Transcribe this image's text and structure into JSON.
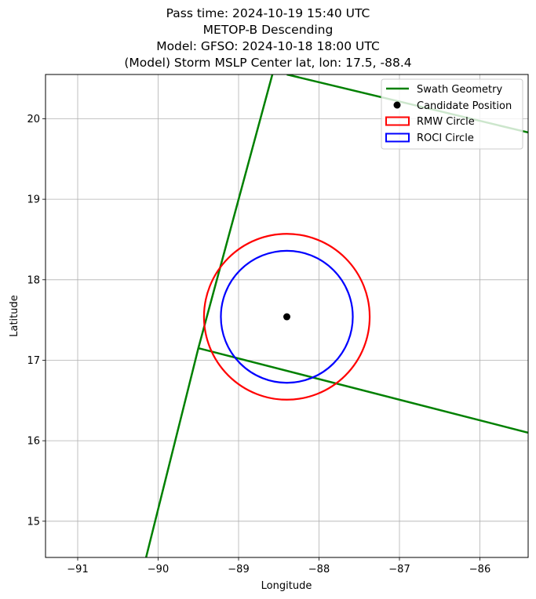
{
  "chart_data": {
    "type": "scatter",
    "title_lines": [
      "Pass time: 2024-10-19 15:40 UTC",
      "METOP-B Descending",
      "Model: GFSO: 2024-10-18 18:00 UTC",
      "(Model) Storm MSLP Center lat, lon: 17.5, -88.4"
    ],
    "xlabel": "Longitude",
    "ylabel": "Latitude",
    "xlim": [
      -91.4,
      -85.4
    ],
    "ylim": [
      14.55,
      20.55
    ],
    "xticks": [
      -91,
      -90,
      -89,
      -88,
      -87,
      -86
    ],
    "yticks": [
      15,
      16,
      17,
      18,
      19,
      20
    ],
    "xtick_labels": [
      "−91",
      "−90",
      "−89",
      "−88",
      "−87",
      "−86"
    ],
    "ytick_labels": [
      "15",
      "16",
      "17",
      "18",
      "19",
      "20"
    ],
    "grid": true,
    "legend_position": "top-right",
    "legend": [
      {
        "label": "Swath Geometry",
        "kind": "line",
        "color": "#008000"
      },
      {
        "label": "Candidate Position",
        "kind": "marker",
        "color": "#000000"
      },
      {
        "label": "RMW Circle",
        "kind": "patch",
        "color": "#ff0000"
      },
      {
        "label": "ROCI Circle",
        "kind": "patch",
        "color": "#0000ff"
      }
    ],
    "swath_lines": [
      {
        "points": [
          [
            -90.15,
            14.55
          ],
          [
            -89.5,
            17.15
          ],
          [
            -88.58,
            20.55
          ]
        ]
      },
      {
        "points": [
          [
            -89.5,
            17.15
          ],
          [
            -85.4,
            16.1
          ]
        ]
      },
      {
        "points": [
          [
            -88.4,
            20.55
          ],
          [
            -85.4,
            19.83
          ]
        ]
      }
    ],
    "candidate_position": {
      "lon": -88.4,
      "lat": 17.54,
      "color": "#000000"
    },
    "circles": [
      {
        "name": "RMW Circle",
        "center": [
          -88.4,
          17.54
        ],
        "radius_lon": 1.03,
        "radius_lat": 1.03,
        "color": "#ff0000"
      },
      {
        "name": "ROCI Circle",
        "center": [
          -88.4,
          17.54
        ],
        "radius_lon": 0.82,
        "radius_lat": 0.82,
        "color": "#0000ff"
      }
    ]
  }
}
